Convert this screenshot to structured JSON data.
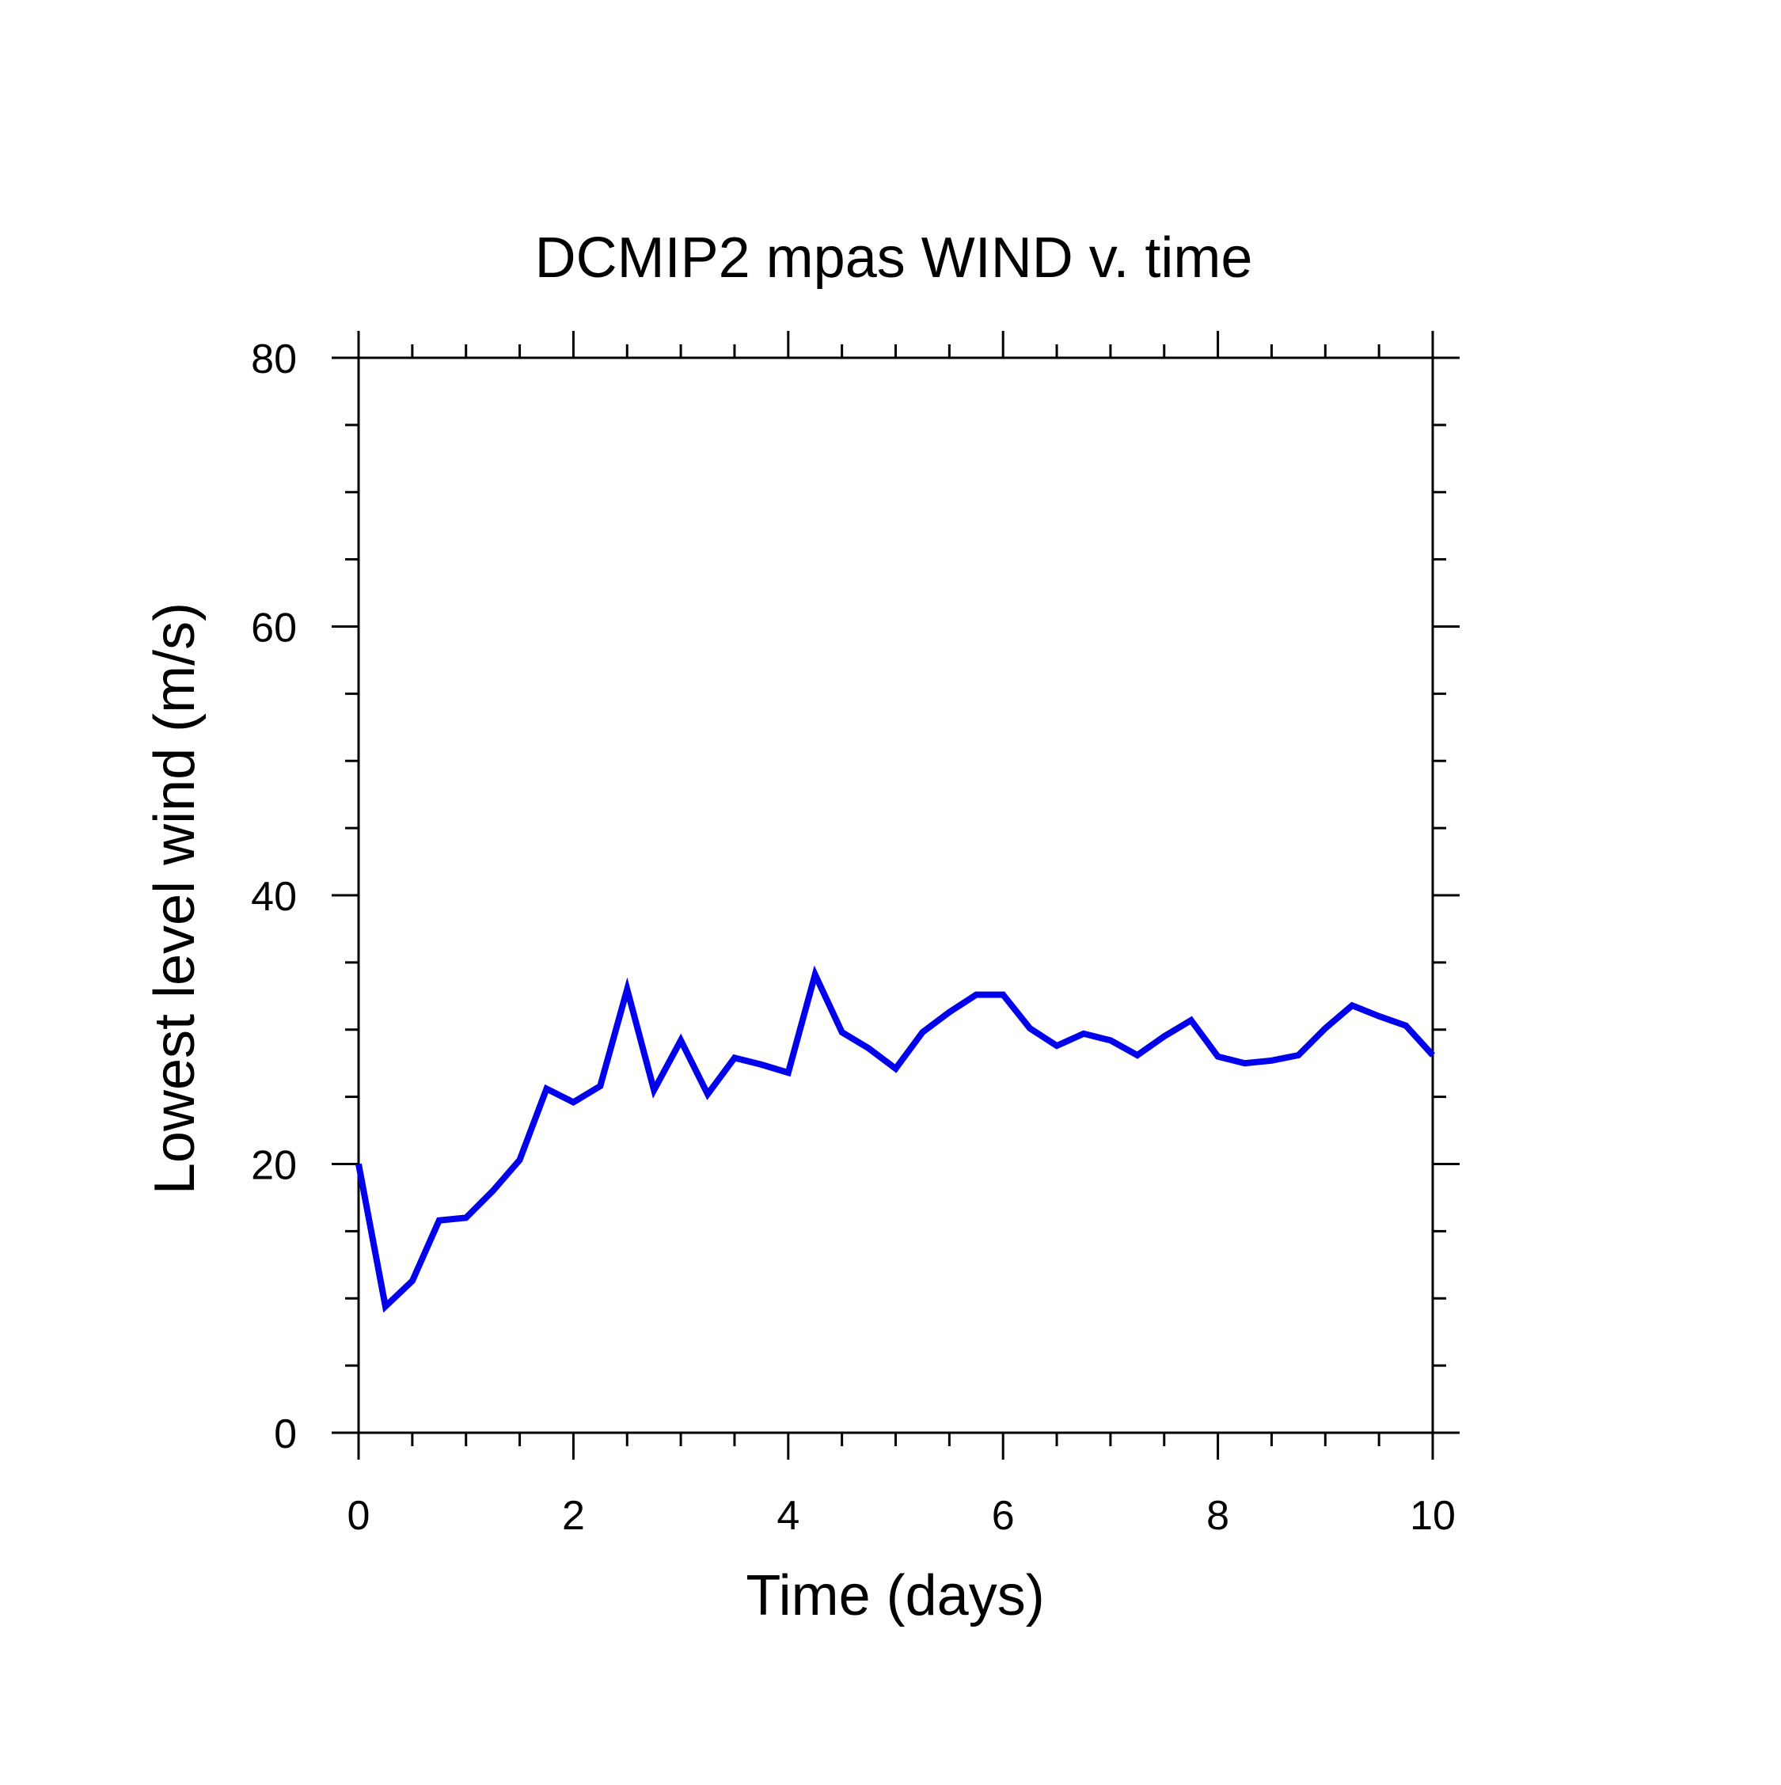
{
  "chart_data": {
    "type": "line",
    "title": "DCMIP2 mpas WIND v. time",
    "xlabel": "Time (days)",
    "ylabel": "Lowest level wind (m/s)",
    "xlim": [
      0,
      10
    ],
    "ylim": [
      0,
      80
    ],
    "x_ticks": [
      0,
      2,
      4,
      6,
      8,
      10
    ],
    "x_tick_labels": [
      "0",
      "2",
      "4",
      "6",
      "8",
      "10"
    ],
    "y_ticks": [
      0,
      20,
      40,
      60,
      80
    ],
    "y_tick_labels": [
      "0",
      "20",
      "40",
      "60",
      "80"
    ],
    "x_minor_step": 0.5,
    "y_minor_step": 5,
    "grid": false,
    "legend": "none",
    "series": [
      {
        "color": "#0000ee",
        "x": [
          0,
          0.25,
          0.5,
          0.75,
          1.0,
          1.25,
          1.5,
          1.75,
          2.0,
          2.25,
          2.5,
          2.75,
          3.0,
          3.25,
          3.5,
          3.75,
          4.0,
          4.25,
          4.5,
          4.75,
          5.0,
          5.25,
          5.5,
          5.75,
          6.0,
          6.25,
          6.5,
          6.75,
          7.0,
          7.25,
          7.5,
          7.75,
          8.0,
          8.25,
          8.5,
          8.75,
          9.0,
          9.25,
          9.5,
          9.75,
          10.0
        ],
        "y": [
          20.0,
          9.4,
          11.3,
          15.8,
          16.0,
          18.0,
          20.3,
          25.6,
          24.6,
          25.8,
          33.0,
          25.5,
          29.2,
          25.2,
          27.9,
          27.4,
          26.8,
          34.1,
          29.8,
          28.6,
          27.1,
          29.8,
          31.3,
          32.6,
          32.6,
          30.1,
          28.8,
          29.7,
          29.2,
          28.1,
          29.5,
          30.7,
          28.0,
          27.5,
          27.7,
          28.1,
          30.1,
          31.8,
          31.0,
          30.3,
          28.1
        ]
      }
    ]
  }
}
